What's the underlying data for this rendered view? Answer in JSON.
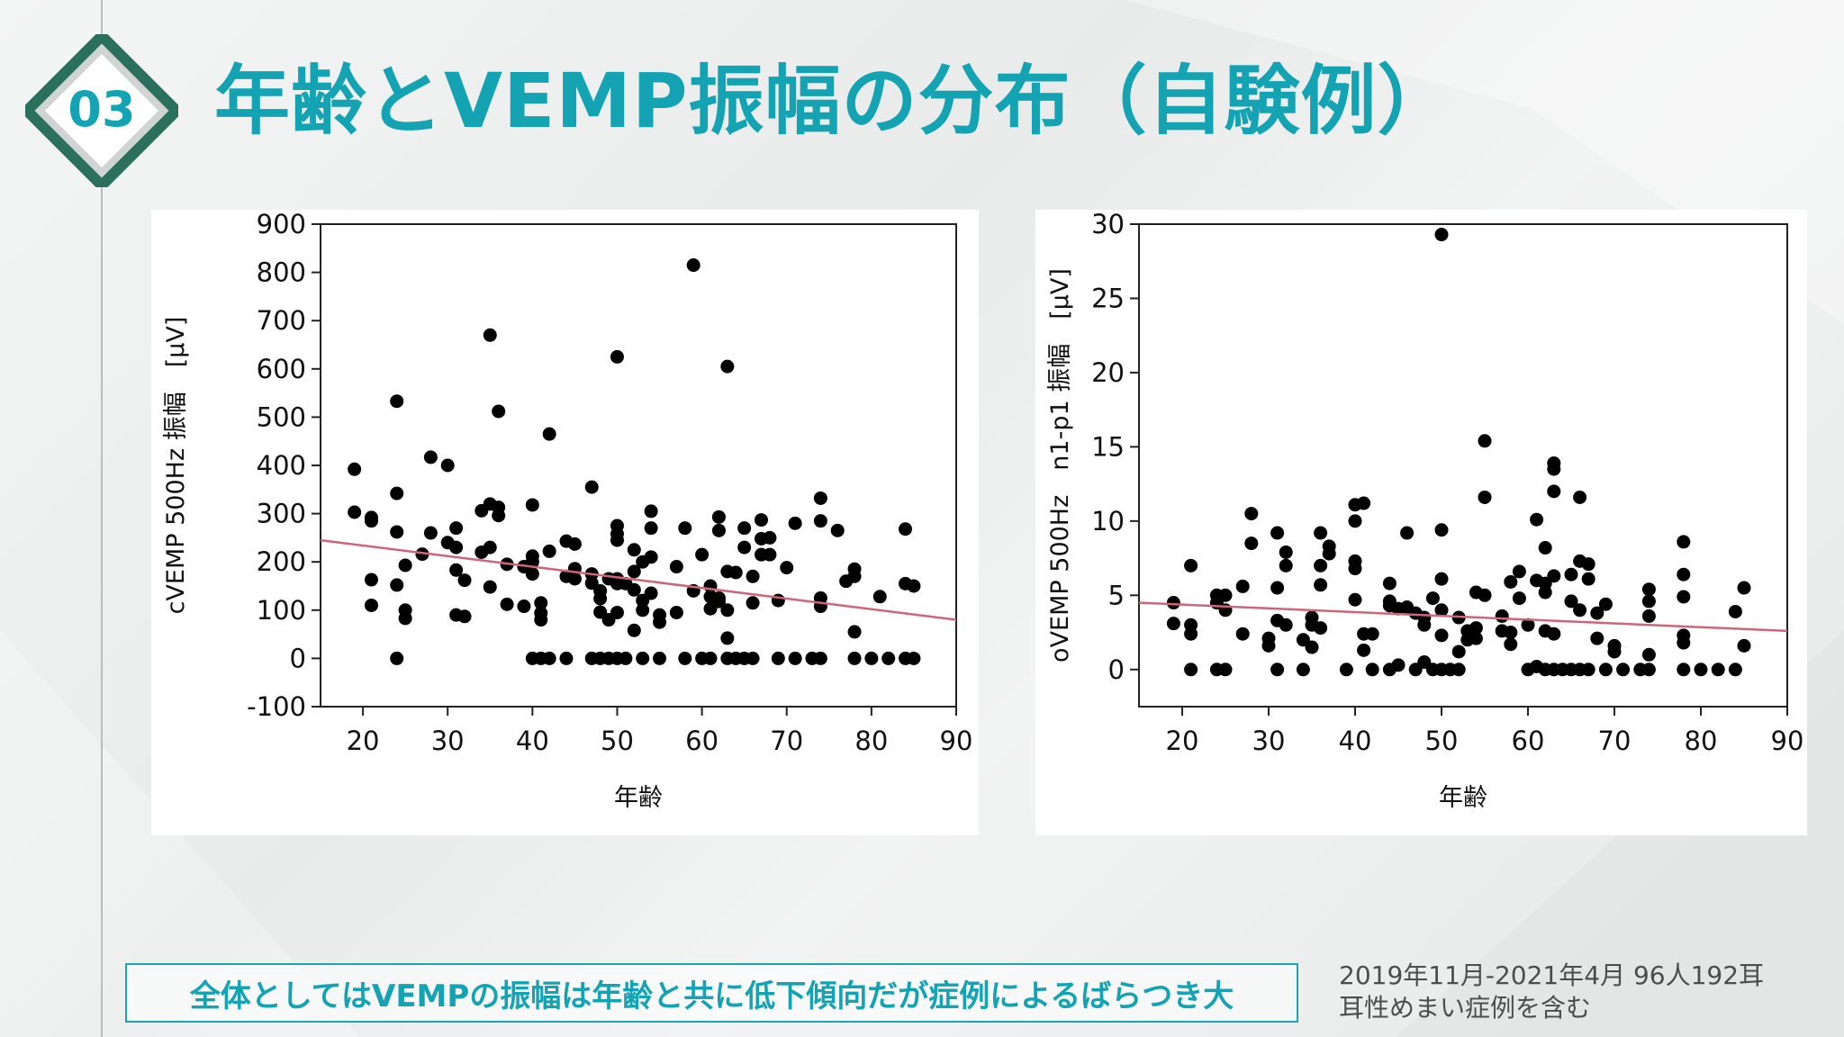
{
  "slide": {
    "number": "03",
    "title": "年齢とVEMP振幅の分布（自験例）",
    "accent_color": "#14a3b3",
    "badge_colors": {
      "frame": "#2b6f5d",
      "inner": "#ffffff",
      "number": "#14a3b3"
    },
    "conclusion": "全体としてはVEMPの振幅は年齢と共に低下傾向だが症例によるばらつき大",
    "note_line1": "2019年11月-2021年4月  96人192耳",
    "note_line2": "耳性めまい症例を含む"
  },
  "chart_data": [
    {
      "type": "scatter",
      "title": "",
      "xlabel": "年齢",
      "ylabel": "cVEMP 500Hz 振幅　[μV]",
      "xlim": [
        15,
        90
      ],
      "ylim": [
        -100,
        900
      ],
      "xticks": [
        20,
        30,
        40,
        50,
        60,
        70,
        80,
        90
      ],
      "yticks": [
        -100,
        0,
        100,
        200,
        300,
        400,
        500,
        600,
        700,
        800,
        900
      ],
      "grid": false,
      "marker_color": "#000000",
      "trendline": {
        "x": [
          15,
          90
        ],
        "y": [
          245,
          80
        ],
        "color": "#d0657a"
      },
      "points": [
        [
          19,
          392
        ],
        [
          19,
          303
        ],
        [
          21,
          292
        ],
        [
          21,
          285
        ],
        [
          21,
          163
        ],
        [
          21,
          110
        ],
        [
          24,
          533
        ],
        [
          24,
          342
        ],
        [
          24,
          262
        ],
        [
          24,
          152
        ],
        [
          24,
          0
        ],
        [
          25,
          193
        ],
        [
          25,
          100
        ],
        [
          25,
          83
        ],
        [
          27,
          216
        ],
        [
          28,
          417
        ],
        [
          28,
          260
        ],
        [
          30,
          400
        ],
        [
          30,
          240
        ],
        [
          31,
          270
        ],
        [
          31,
          230
        ],
        [
          31,
          183
        ],
        [
          31,
          90
        ],
        [
          32,
          87
        ],
        [
          32,
          162
        ],
        [
          34,
          306
        ],
        [
          34,
          220
        ],
        [
          35,
          670
        ],
        [
          35,
          320
        ],
        [
          35,
          230
        ],
        [
          35,
          148
        ],
        [
          36,
          512
        ],
        [
          36,
          313
        ],
        [
          36,
          296
        ],
        [
          37,
          195
        ],
        [
          37,
          112
        ],
        [
          39,
          108
        ],
        [
          39,
          190
        ],
        [
          40,
          318
        ],
        [
          40,
          212
        ],
        [
          40,
          200
        ],
        [
          40,
          175
        ],
        [
          40,
          0
        ],
        [
          41,
          115
        ],
        [
          41,
          94
        ],
        [
          41,
          80
        ],
        [
          41,
          0
        ],
        [
          42,
          465
        ],
        [
          42,
          222
        ],
        [
          42,
          0
        ],
        [
          44,
          243
        ],
        [
          44,
          170
        ],
        [
          44,
          0
        ],
        [
          45,
          237
        ],
        [
          45,
          186
        ],
        [
          45,
          165
        ],
        [
          47,
          355
        ],
        [
          47,
          175
        ],
        [
          47,
          156
        ],
        [
          47,
          0
        ],
        [
          48,
          140
        ],
        [
          48,
          124
        ],
        [
          48,
          96
        ],
        [
          48,
          0
        ],
        [
          49,
          165
        ],
        [
          49,
          80
        ],
        [
          49,
          0
        ],
        [
          50,
          625
        ],
        [
          50,
          275
        ],
        [
          50,
          258
        ],
        [
          50,
          245
        ],
        [
          50,
          165
        ],
        [
          50,
          155
        ],
        [
          50,
          95
        ],
        [
          50,
          0
        ],
        [
          51,
          155
        ],
        [
          51,
          0
        ],
        [
          52,
          225
        ],
        [
          52,
          180
        ],
        [
          52,
          142
        ],
        [
          52,
          58
        ],
        [
          53,
          200
        ],
        [
          53,
          120
        ],
        [
          53,
          100
        ],
        [
          53,
          0
        ],
        [
          54,
          305
        ],
        [
          54,
          270
        ],
        [
          54,
          210
        ],
        [
          54,
          135
        ],
        [
          55,
          90
        ],
        [
          55,
          75
        ],
        [
          55,
          0
        ],
        [
          57,
          190
        ],
        [
          57,
          95
        ],
        [
          58,
          270
        ],
        [
          58,
          0
        ],
        [
          59,
          815
        ],
        [
          59,
          140
        ],
        [
          60,
          215
        ],
        [
          60,
          0
        ],
        [
          61,
          150
        ],
        [
          61,
          128
        ],
        [
          61,
          103
        ],
        [
          61,
          0
        ],
        [
          62,
          293
        ],
        [
          62,
          265
        ],
        [
          62,
          125
        ],
        [
          62,
          118
        ],
        [
          63,
          605
        ],
        [
          63,
          180
        ],
        [
          63,
          100
        ],
        [
          63,
          42
        ],
        [
          63,
          0
        ],
        [
          64,
          178
        ],
        [
          64,
          0
        ],
        [
          65,
          270
        ],
        [
          65,
          230
        ],
        [
          65,
          0
        ],
        [
          66,
          170
        ],
        [
          66,
          115
        ],
        [
          66,
          0
        ],
        [
          67,
          287
        ],
        [
          67,
          248
        ],
        [
          67,
          215
        ],
        [
          68,
          250
        ],
        [
          68,
          215
        ],
        [
          69,
          120
        ],
        [
          69,
          0
        ],
        [
          70,
          188
        ],
        [
          71,
          280
        ],
        [
          71,
          0
        ],
        [
          73,
          0
        ],
        [
          74,
          332
        ],
        [
          74,
          285
        ],
        [
          74,
          125
        ],
        [
          74,
          108
        ],
        [
          74,
          0
        ],
        [
          76,
          265
        ],
        [
          77,
          160
        ],
        [
          78,
          185
        ],
        [
          78,
          170
        ],
        [
          78,
          55
        ],
        [
          78,
          0
        ],
        [
          80,
          0
        ],
        [
          81,
          128
        ],
        [
          82,
          0
        ],
        [
          84,
          268
        ],
        [
          84,
          155
        ],
        [
          84,
          0
        ],
        [
          85,
          150
        ],
        [
          85,
          0
        ]
      ]
    },
    {
      "type": "scatter",
      "title": "",
      "xlabel": "年齢",
      "ylabel": "oVEMP 500Hz　n1-p1 振幅　[μV]",
      "xlim": [
        15,
        90
      ],
      "ylim": [
        -2.5,
        30
      ],
      "xticks": [
        20,
        30,
        40,
        50,
        60,
        70,
        80,
        90
      ],
      "yticks": [
        0,
        5,
        10,
        15,
        20,
        25,
        30
      ],
      "grid": false,
      "marker_color": "#000000",
      "trendline": {
        "x": [
          15,
          90
        ],
        "y": [
          4.5,
          2.6
        ],
        "color": "#d0657a"
      },
      "points": [
        [
          19,
          4.5
        ],
        [
          19,
          3.1
        ],
        [
          21,
          7.0
        ],
        [
          21,
          3.0
        ],
        [
          21,
          2.4
        ],
        [
          21,
          0
        ],
        [
          24,
          5.0
        ],
        [
          24,
          4.5
        ],
        [
          24,
          0
        ],
        [
          25,
          4.0
        ],
        [
          25,
          5.0
        ],
        [
          25,
          0
        ],
        [
          27,
          5.6
        ],
        [
          27,
          2.4
        ],
        [
          28,
          10.5
        ],
        [
          28,
          8.5
        ],
        [
          30,
          2.1
        ],
        [
          30,
          1.6
        ],
        [
          31,
          9.2
        ],
        [
          31,
          5.5
        ],
        [
          31,
          3.3
        ],
        [
          31,
          0
        ],
        [
          32,
          7.9
        ],
        [
          32,
          7.0
        ],
        [
          32,
          3.0
        ],
        [
          34,
          0
        ],
        [
          34,
          2.0
        ],
        [
          35,
          3.5
        ],
        [
          35,
          3.0
        ],
        [
          35,
          1.5
        ],
        [
          36,
          9.2
        ],
        [
          36,
          7.0
        ],
        [
          36,
          5.7
        ],
        [
          36,
          2.8
        ],
        [
          37,
          8.3
        ],
        [
          37,
          7.8
        ],
        [
          39,
          0
        ],
        [
          40,
          11.1
        ],
        [
          40,
          10.0
        ],
        [
          40,
          7.3
        ],
        [
          40,
          6.8
        ],
        [
          40,
          4.7
        ],
        [
          41,
          11.2
        ],
        [
          41,
          2.4
        ],
        [
          41,
          1.3
        ],
        [
          42,
          2.4
        ],
        [
          42,
          0
        ],
        [
          44,
          5.8
        ],
        [
          44,
          4.6
        ],
        [
          44,
          4.3
        ],
        [
          44,
          0
        ],
        [
          45,
          4.1
        ],
        [
          45,
          0.3
        ],
        [
          46,
          9.2
        ],
        [
          46,
          4.2
        ],
        [
          47,
          3.8
        ],
        [
          47,
          0
        ],
        [
          48,
          3.5
        ],
        [
          48,
          3.0
        ],
        [
          48,
          0.5
        ],
        [
          49,
          4.8
        ],
        [
          49,
          0
        ],
        [
          50,
          29.3
        ],
        [
          50,
          9.4
        ],
        [
          50,
          6.1
        ],
        [
          50,
          4.0
        ],
        [
          50,
          2.3
        ],
        [
          50,
          0
        ],
        [
          51,
          0
        ],
        [
          52,
          3.5
        ],
        [
          52,
          1.2
        ],
        [
          52,
          0
        ],
        [
          53,
          2.6
        ],
        [
          53,
          2.0
        ],
        [
          54,
          5.2
        ],
        [
          54,
          2.8
        ],
        [
          54,
          2.1
        ],
        [
          55,
          15.4
        ],
        [
          55,
          11.6
        ],
        [
          55,
          5.0
        ],
        [
          57,
          3.6
        ],
        [
          57,
          2.6
        ],
        [
          58,
          5.9
        ],
        [
          58,
          2.5
        ],
        [
          58,
          1.7
        ],
        [
          59,
          4.8
        ],
        [
          59,
          6.6
        ],
        [
          60,
          3.0
        ],
        [
          60,
          0
        ],
        [
          61,
          10.1
        ],
        [
          61,
          6.0
        ],
        [
          61,
          0.2
        ],
        [
          62,
          8.2
        ],
        [
          62,
          5.8
        ],
        [
          62,
          5.2
        ],
        [
          62,
          2.6
        ],
        [
          62,
          0
        ],
        [
          63,
          13.9
        ],
        [
          63,
          13.5
        ],
        [
          63,
          12.0
        ],
        [
          63,
          6.3
        ],
        [
          63,
          2.4
        ],
        [
          63,
          0
        ],
        [
          64,
          0
        ],
        [
          65,
          6.4
        ],
        [
          65,
          4.6
        ],
        [
          65,
          0
        ],
        [
          66,
          11.6
        ],
        [
          66,
          7.3
        ],
        [
          66,
          4.0
        ],
        [
          66,
          0
        ],
        [
          67,
          7.1
        ],
        [
          67,
          6.1
        ],
        [
          67,
          0
        ],
        [
          68,
          2.1
        ],
        [
          68,
          3.8
        ],
        [
          69,
          4.4
        ],
        [
          69,
          0
        ],
        [
          70,
          1.6
        ],
        [
          70,
          1.2
        ],
        [
          71,
          0
        ],
        [
          73,
          0
        ],
        [
          74,
          5.4
        ],
        [
          74,
          4.6
        ],
        [
          74,
          3.6
        ],
        [
          74,
          1.0
        ],
        [
          74,
          0
        ],
        [
          78,
          8.6
        ],
        [
          78,
          6.4
        ],
        [
          78,
          4.9
        ],
        [
          78,
          2.3
        ],
        [
          78,
          1.8
        ],
        [
          78,
          0
        ],
        [
          80,
          0
        ],
        [
          82,
          0
        ],
        [
          84,
          3.9
        ],
        [
          84,
          0
        ],
        [
          85,
          5.5
        ],
        [
          85,
          1.6
        ]
      ]
    }
  ]
}
